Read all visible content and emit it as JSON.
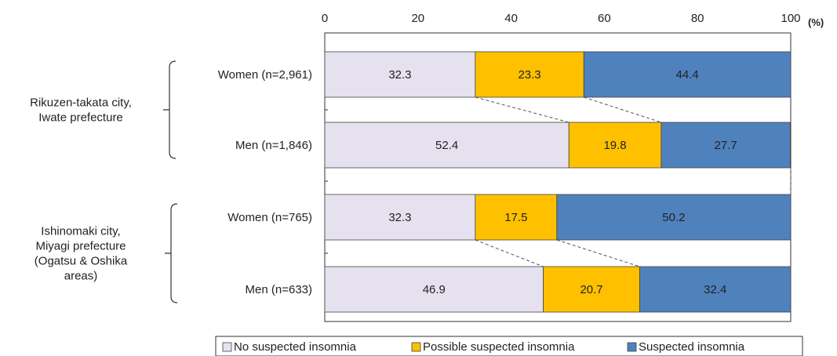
{
  "chart_data": {
    "type": "bar",
    "orientation": "horizontal",
    "stacked": true,
    "unit": "(%)",
    "xlim": [
      0,
      100
    ],
    "x_ticks": [
      0,
      20,
      40,
      60,
      80,
      100
    ],
    "categories": [
      "Women (n=2,961)",
      "Men (n=1,846)",
      "Women (n=765)",
      "Men (n=633)"
    ],
    "groups": [
      {
        "label_lines": [
          "Rikuzen-takata  city,",
          "Iwate prefecture"
        ],
        "rows": [
          0,
          1
        ]
      },
      {
        "label_lines": [
          "Ishinomaki city,",
          "Miyagi prefecture",
          "(Ogatsu & Oshika",
          "areas)"
        ],
        "rows": [
          2,
          3
        ]
      }
    ],
    "series": [
      {
        "name": "No suspected insomnia",
        "color": "#e6e1ee",
        "values": [
          32.3,
          52.4,
          32.3,
          46.9
        ]
      },
      {
        "name": "Possible suspected insomnia",
        "color": "#ffc000",
        "values": [
          23.3,
          19.8,
          17.5,
          20.7
        ]
      },
      {
        "name": "Suspected insomnia",
        "color": "#4f81bd",
        "values": [
          44.4,
          27.7,
          50.2,
          32.4
        ]
      }
    ],
    "legend_position": "bottom",
    "grid": false
  }
}
